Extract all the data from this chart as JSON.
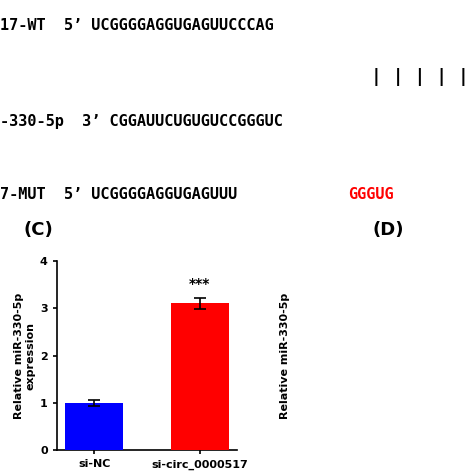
{
  "categories": [
    "si-NC",
    "si-circ_0000517"
  ],
  "values": [
    1.0,
    3.1
  ],
  "errors": [
    0.07,
    0.12
  ],
  "bar_colors": [
    "#0000ff",
    "#ff0000"
  ],
  "ylabel": "Relative miR-330-5p\nexpression",
  "ylim": [
    0,
    4
  ],
  "yticks": [
    0,
    1,
    2,
    3,
    4
  ],
  "panel_label_C": "(C)",
  "panel_label_D": "(D)",
  "significance": "***",
  "background_color": "#ffffff",
  "bar_width": 0.55,
  "line1_black": "17-WT  5’ UCGGGGAGGUGAGUUCCCAG",
  "line2_bars": "| | | | |",
  "line3_black_prefix": "-330-5p  3’ CGGAUUCUGUGUCCGGGUC",
  "line4_black": "7-MUT  5’ UCGGGGAGGUGAGUUU",
  "line4_red": "GGGUG",
  "right_ylabel": "Relative miR-330-5p"
}
